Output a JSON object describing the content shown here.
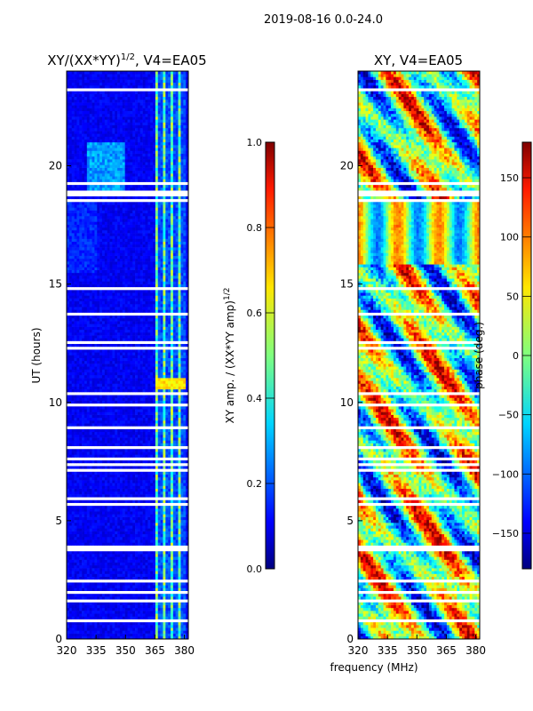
{
  "suptitle": "2019-08-16 0.0-24.0",
  "xlabel_shared": "frequency (MHz)",
  "colors": {
    "jet": [
      "#00007f",
      "#0000ff",
      "#007fff",
      "#00ffff",
      "#7fff7f",
      "#ffff00",
      "#ff7f00",
      "#ff0000",
      "#7f0000"
    ],
    "blank_row": "#ffffff"
  },
  "chart_data": [
    {
      "type": "heatmap",
      "title_main": "XY/(XX*YY)",
      "title_exp": "1/2",
      "title_suffix": ", V4=EA05",
      "xlabel": "",
      "ylabel": "UT (hours)",
      "xlim": [
        320,
        382
      ],
      "ylim": [
        0,
        24
      ],
      "xticks": [
        320,
        335,
        350,
        365,
        380
      ],
      "yticks": [
        0,
        5,
        10,
        15,
        20
      ],
      "description": "normalized cross-correlation amplitude vs frequency and time",
      "colorbar": {
        "label_main": "XY amp. / (XX*YY amp)",
        "label_exp": "1/2",
        "range": [
          0.0,
          1.0
        ],
        "ticks": [
          "0.0",
          "0.2",
          "0.4",
          "0.6",
          "0.8",
          "1.0"
        ]
      }
    },
    {
      "type": "heatmap",
      "title_main": "XY, V4=EA05",
      "xlabel": "frequency (MHz)",
      "ylabel": "",
      "xlim": [
        320,
        382
      ],
      "ylim": [
        0,
        24
      ],
      "xticks": [
        320,
        335,
        350,
        365,
        380
      ],
      "yticks": [
        0,
        5,
        10,
        15,
        20
      ],
      "description": "cross-correlation phase vs frequency and time",
      "colorbar": {
        "label_main": "phase (deg.)",
        "range": [
          -180,
          180
        ],
        "ticks": [
          "−150",
          "−100",
          "−50",
          "0",
          "50",
          "100",
          "150"
        ]
      }
    }
  ]
}
